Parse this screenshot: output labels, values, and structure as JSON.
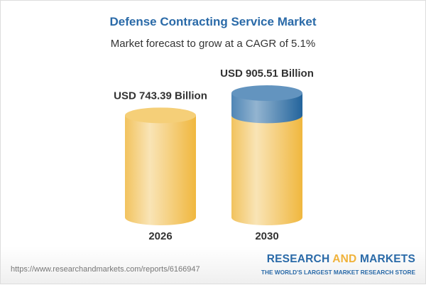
{
  "title": "Defense Contracting Service Market",
  "subtitle": "Market forecast to grow at a CAGR of 5.1%",
  "chart_data": {
    "type": "bar",
    "style": "3d-cylinder",
    "categories": [
      "2026",
      "2030"
    ],
    "values": [
      743.39,
      905.51
    ],
    "data_labels": [
      "USD 743.39 Billion",
      "USD 905.51 Billion"
    ],
    "unit": "USD Billion",
    "cagr": "5.1%",
    "colors": {
      "base": "#f3c155",
      "growth": "#3f7fb3"
    }
  },
  "footer": {
    "url": "https://www.researchandmarkets.com/reports/6166947",
    "brand_part1": "RESEARCH ",
    "brand_part2": "AND",
    "brand_part3": " MARKETS",
    "tagline": "THE WORLD'S LARGEST MARKET RESEARCH STORE"
  }
}
